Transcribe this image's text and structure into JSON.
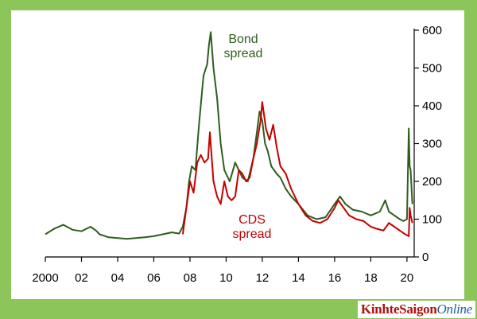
{
  "colors": {
    "page_background": "#8cc65a",
    "plot_background": "#ffffff",
    "bond_series": "#2e5e1e",
    "cds_series": "#c40000",
    "axis": "#000000"
  },
  "watermark": {
    "part1": "KinhteSaigon",
    "part2": "Online"
  },
  "chart_data": {
    "type": "line",
    "title": "",
    "xlabel": "",
    "ylabel": "",
    "xlim": [
      2000,
      2020.4
    ],
    "ylim": [
      0,
      600
    ],
    "y_axis_position": "right",
    "grid": false,
    "legend": "none (series labelled inline)",
    "x_ticks": [
      2000,
      2002,
      2004,
      2006,
      2008,
      2010,
      2012,
      2014,
      2016,
      2018,
      2020
    ],
    "x_tick_labels": [
      "2000",
      "02",
      "04",
      "06",
      "08",
      "10",
      "12",
      "14",
      "16",
      "18",
      "20"
    ],
    "y_ticks": [
      0,
      100,
      200,
      300,
      400,
      500,
      600
    ],
    "y_tick_labels": [
      "0",
      "100",
      "200",
      "300",
      "400",
      "500",
      "600"
    ],
    "annotations": [
      {
        "lines": [
          "Bond",
          "spread"
        ],
        "series": "bond"
      },
      {
        "lines": [
          "CDS",
          "spread"
        ],
        "series": "cds"
      }
    ],
    "series": [
      {
        "key": "bond",
        "x": [
          2000.0,
          2000.5,
          2001.0,
          2001.5,
          2002.0,
          2002.5,
          2002.8,
          2003.0,
          2003.5,
          2004.0,
          2004.5,
          2005.0,
          2005.5,
          2006.0,
          2006.5,
          2007.0,
          2007.4,
          2007.6,
          2007.8,
          2007.95,
          2008.1,
          2008.3,
          2008.5,
          2008.75,
          2008.95,
          2009.05,
          2009.15,
          2009.3,
          2009.5,
          2009.7,
          2009.9,
          2010.2,
          2010.5,
          2010.7,
          2010.9,
          2011.2,
          2011.5,
          2011.7,
          2011.85,
          2012.0,
          2012.15,
          2012.3,
          2012.5,
          2012.8,
          2013.0,
          2013.3,
          2013.6,
          2014.0,
          2014.5,
          2015.0,
          2015.5,
          2016.0,
          2016.3,
          2016.6,
          2017.0,
          2017.5,
          2018.0,
          2018.5,
          2018.8,
          2019.0,
          2019.3,
          2019.6,
          2019.8,
          2020.0,
          2020.1,
          2020.15,
          2020.2,
          2020.3
        ],
        "values": [
          60,
          75,
          85,
          72,
          68,
          80,
          70,
          60,
          52,
          50,
          48,
          50,
          52,
          55,
          60,
          65,
          62,
          80,
          130,
          200,
          240,
          230,
          350,
          480,
          510,
          560,
          595,
          500,
          420,
          300,
          230,
          200,
          250,
          230,
          210,
          200,
          260,
          330,
          385,
          360,
          300,
          280,
          240,
          220,
          210,
          180,
          160,
          140,
          110,
          100,
          105,
          140,
          160,
          140,
          125,
          120,
          110,
          120,
          150,
          120,
          110,
          100,
          95,
          100,
          340,
          240,
          230,
          140
        ]
      },
      {
        "key": "cds",
        "x": [
          2007.6,
          2007.8,
          2008.0,
          2008.2,
          2008.4,
          2008.6,
          2008.8,
          2009.0,
          2009.1,
          2009.3,
          2009.5,
          2009.7,
          2009.9,
          2010.1,
          2010.3,
          2010.5,
          2010.7,
          2010.9,
          2011.1,
          2011.3,
          2011.5,
          2011.7,
          2011.9,
          2012.0,
          2012.2,
          2012.4,
          2012.6,
          2012.8,
          2013.0,
          2013.3,
          2013.6,
          2014.0,
          2014.4,
          2014.8,
          2015.2,
          2015.6,
          2016.0,
          2016.2,
          2016.5,
          2016.8,
          2017.2,
          2017.6,
          2018.0,
          2018.3,
          2018.7,
          2019.0,
          2019.3,
          2019.6,
          2019.9,
          2020.1,
          2020.15,
          2020.2,
          2020.3
        ],
        "values": [
          60,
          130,
          200,
          170,
          250,
          270,
          250,
          260,
          330,
          200,
          160,
          140,
          200,
          160,
          150,
          160,
          230,
          220,
          200,
          210,
          260,
          300,
          360,
          410,
          340,
          310,
          350,
          290,
          240,
          220,
          180,
          140,
          110,
          95,
          90,
          100,
          130,
          150,
          130,
          110,
          100,
          95,
          80,
          75,
          70,
          90,
          80,
          70,
          60,
          55,
          130,
          110,
          90
        ]
      }
    ]
  }
}
